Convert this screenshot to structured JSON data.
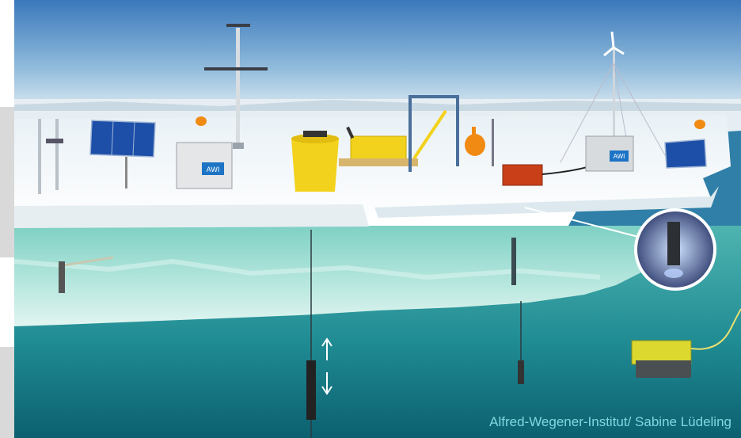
{
  "image": {
    "credit": "Alfred-Wegener-Institut/ Sabine Lüdeling",
    "logo_text": "AWI"
  },
  "colors": {
    "sky_top": "#3f7fc0",
    "sky_bottom": "#d6e8f2",
    "ice_surface": "#f4f8fa",
    "ice_underwater": "#9fdcd0",
    "water_deep": "#0f6f7e",
    "buoy_orange": "#f08a12",
    "container_yellow": "#f2d21c",
    "credit_text": "#7fd8e0"
  }
}
